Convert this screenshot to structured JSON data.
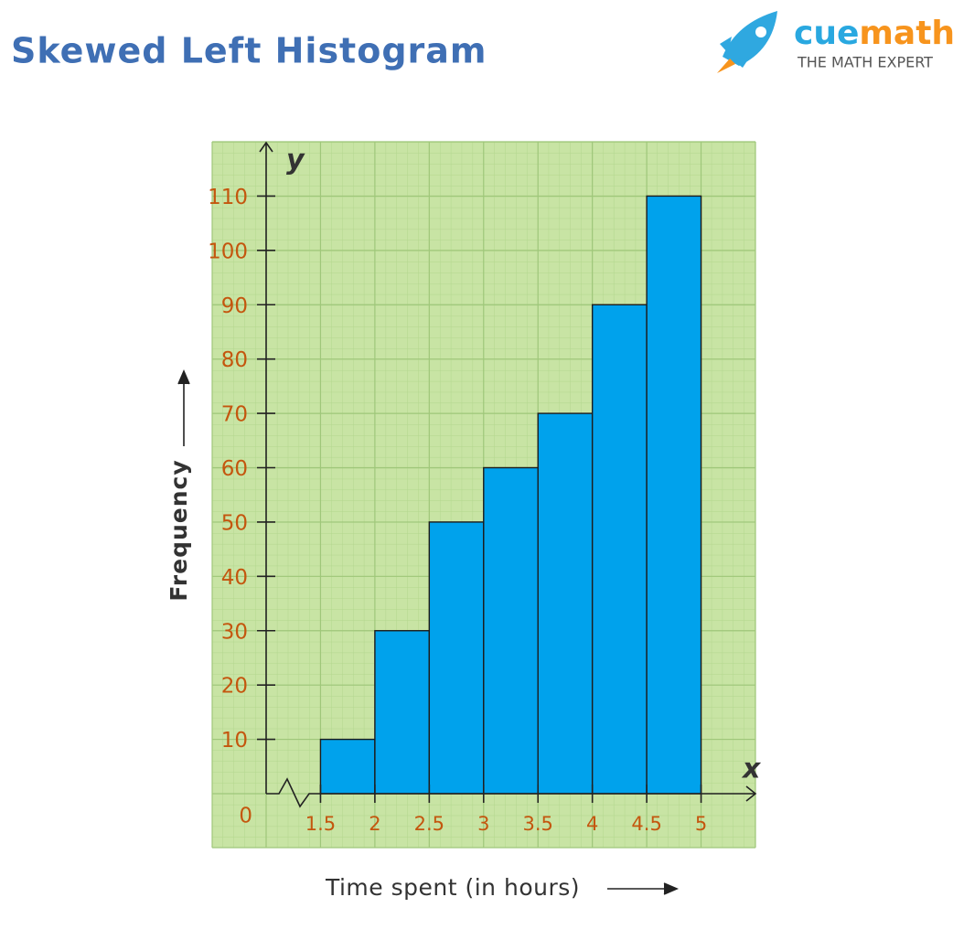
{
  "logo": {
    "name": [
      "cue",
      "math"
    ],
    "tagline": "THE MATH EXPERT"
  },
  "chart_data": {
    "type": "histogram",
    "title": "Skewed Left Histogram",
    "x_label": "Time spent (in hours)",
    "y_label": "Frequency",
    "x_axis_name": "x",
    "y_axis_name": "y",
    "bins": [
      1.5,
      2,
      2.5,
      3,
      3.5,
      4,
      4.5,
      5
    ],
    "counts": [
      10,
      30,
      50,
      60,
      70,
      90,
      110
    ],
    "color": "#00a2ec",
    "xlim": [
      1,
      5.5
    ],
    "xticks": [
      1.5,
      2,
      2.5,
      3,
      3.5,
      4,
      4.5,
      5
    ],
    "ylim": [
      0,
      120
    ],
    "yticks": [
      0,
      10,
      20,
      30,
      40,
      50,
      60,
      70,
      80,
      90,
      100,
      110
    ],
    "grid": true
  }
}
